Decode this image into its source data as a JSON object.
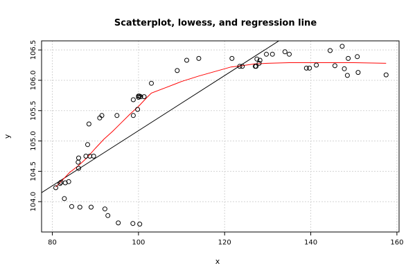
{
  "chart_data": {
    "type": "scatter",
    "title": "Scatterplot, lowess, and regression line",
    "xlabel": "x",
    "ylabel": "y",
    "xlim": [
      77.5,
      160.5
    ],
    "ylim": [
      103.5,
      106.65
    ],
    "xticks": [
      80,
      100,
      120,
      140,
      160
    ],
    "yticks": [
      104.0,
      104.5,
      105.0,
      105.5,
      106.0,
      106.5
    ],
    "x_tick_labels": [
      "80",
      "100",
      "120",
      "140",
      "160"
    ],
    "y_tick_labels": [
      "104.0",
      "104.5",
      "105.0",
      "105.5",
      "106.0",
      "106.5"
    ],
    "grid": true,
    "points": [
      [
        80.8,
        104.23
      ],
      [
        81.8,
        104.3
      ],
      [
        82.0,
        104.32
      ],
      [
        82.8,
        104.05
      ],
      [
        83.0,
        104.31
      ],
      [
        83.8,
        104.33
      ],
      [
        84.5,
        103.92
      ],
      [
        86.0,
        104.65
      ],
      [
        86.1,
        104.72
      ],
      [
        86.1,
        104.55
      ],
      [
        86.4,
        103.91
      ],
      [
        87.8,
        104.75
      ],
      [
        88.2,
        104.94
      ],
      [
        88.5,
        105.28
      ],
      [
        88.7,
        104.75
      ],
      [
        89.0,
        103.91
      ],
      [
        89.6,
        104.75
      ],
      [
        91.0,
        105.38
      ],
      [
        91.5,
        105.42
      ],
      [
        92.2,
        103.88
      ],
      [
        92.9,
        103.77
      ],
      [
        95.0,
        105.42
      ],
      [
        95.3,
        103.65
      ],
      [
        98.7,
        103.64
      ],
      [
        98.8,
        105.68
      ],
      [
        98.8,
        105.42
      ],
      [
        99.8,
        105.52
      ],
      [
        100.0,
        105.72
      ],
      [
        100.0,
        105.74
      ],
      [
        100.2,
        105.74
      ],
      [
        100.3,
        103.63
      ],
      [
        100.5,
        105.73
      ],
      [
        101.3,
        105.73
      ],
      [
        103.0,
        105.95
      ],
      [
        109.0,
        106.16
      ],
      [
        111.2,
        106.33
      ],
      [
        114.0,
        106.36
      ],
      [
        121.7,
        106.36
      ],
      [
        123.5,
        106.23
      ],
      [
        124.1,
        106.23
      ],
      [
        127.1,
        106.23
      ],
      [
        127.3,
        106.23
      ],
      [
        127.5,
        106.35
      ],
      [
        128.0,
        106.28
      ],
      [
        128.2,
        106.33
      ],
      [
        129.7,
        106.43
      ],
      [
        131.1,
        106.43
      ],
      [
        134.0,
        106.47
      ],
      [
        135.0,
        106.43
      ],
      [
        139.0,
        106.2
      ],
      [
        139.7,
        106.2
      ],
      [
        141.3,
        106.25
      ],
      [
        144.5,
        106.49
      ],
      [
        145.6,
        106.24
      ],
      [
        147.3,
        106.56
      ],
      [
        147.8,
        106.19
      ],
      [
        148.5,
        106.08
      ],
      [
        148.7,
        106.36
      ],
      [
        150.8,
        106.39
      ],
      [
        151.0,
        106.13
      ],
      [
        157.5,
        106.09
      ]
    ],
    "regression_line": {
      "intercept": 100.63,
      "slope": 0.0454
    },
    "lowess": [
      [
        80.8,
        104.24
      ],
      [
        82.0,
        104.33
      ],
      [
        84.0,
        104.48
      ],
      [
        86.0,
        104.59
      ],
      [
        88.0,
        104.72
      ],
      [
        90.0,
        104.88
      ],
      [
        92.0,
        105.03
      ],
      [
        94.0,
        105.16
      ],
      [
        96.0,
        105.3
      ],
      [
        98.0,
        105.44
      ],
      [
        100.0,
        105.57
      ],
      [
        102.0,
        105.72
      ],
      [
        103.0,
        105.79
      ],
      [
        106.0,
        105.87
      ],
      [
        110.0,
        105.98
      ],
      [
        114.0,
        106.07
      ],
      [
        118.0,
        106.15
      ],
      [
        121.5,
        106.22
      ],
      [
        124.0,
        106.24
      ],
      [
        127.0,
        106.27
      ],
      [
        130.0,
        106.28
      ],
      [
        135.0,
        106.29
      ],
      [
        140.0,
        106.29
      ],
      [
        145.0,
        106.29
      ],
      [
        150.0,
        106.29
      ],
      [
        157.5,
        106.28
      ]
    ],
    "colors": {
      "points": "#000000",
      "regression": "#000000",
      "lowess": "#ff0000",
      "grid": "#d3d3d3"
    }
  }
}
